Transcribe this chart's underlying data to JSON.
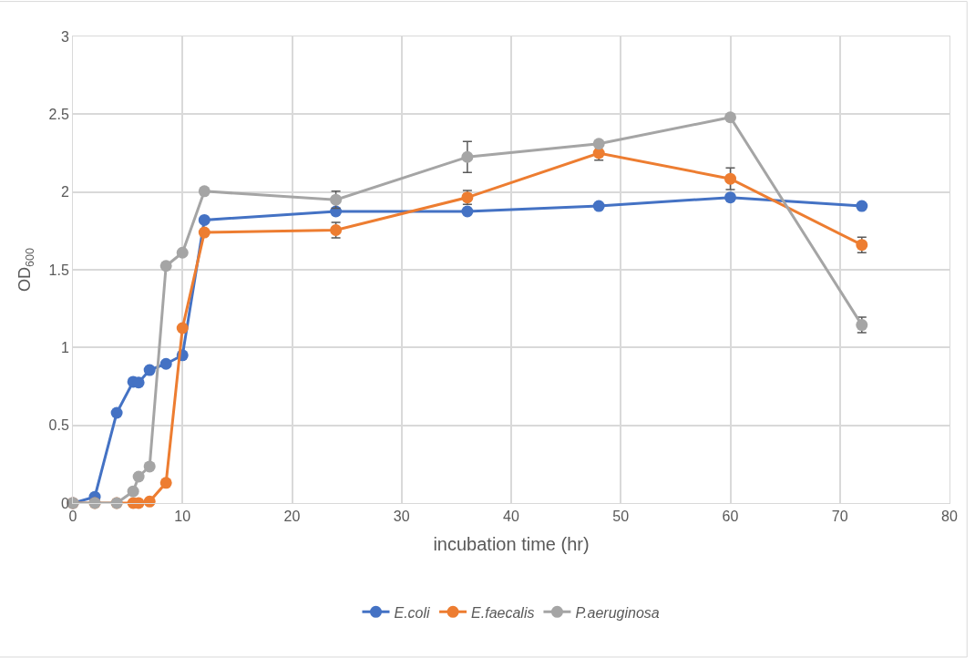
{
  "chart_data": {
    "type": "line",
    "xlabel": "incubation time (hr)",
    "ylabel": "OD$_{600}$",
    "x": [
      0,
      2,
      4,
      5.5,
      6,
      7,
      8.5,
      10,
      12,
      24,
      36,
      48,
      60,
      72
    ],
    "series": [
      {
        "name": "E.coli",
        "color": "#4472c4",
        "values": [
          0,
          0.04,
          0.58,
          0.78,
          0.775,
          0.855,
          0.895,
          0.95,
          1.82,
          1.875,
          1.875,
          1.91,
          1.965,
          1.91
        ],
        "errors": [
          null,
          null,
          null,
          null,
          null,
          null,
          null,
          null,
          null,
          null,
          null,
          null,
          null,
          null
        ]
      },
      {
        "name": "E.faecalis",
        "color": "#ed7d31",
        "values": [
          0,
          0,
          0,
          0,
          0,
          0.01,
          0.13,
          1.125,
          1.74,
          1.755,
          1.965,
          2.25,
          2.085,
          1.66
        ],
        "errors": [
          null,
          null,
          null,
          null,
          null,
          null,
          null,
          null,
          null,
          0.05,
          0.045,
          0.045,
          0.07,
          0.05
        ]
      },
      {
        "name": "P.aeruginosa",
        "color": "#a5a5a5",
        "values": [
          0,
          0,
          0,
          0.075,
          0.17,
          0.235,
          1.525,
          1.61,
          2.005,
          1.95,
          2.225,
          2.31,
          2.48,
          1.145
        ],
        "errors": [
          null,
          null,
          null,
          null,
          null,
          null,
          null,
          null,
          null,
          0.055,
          0.1,
          null,
          null,
          0.05
        ]
      }
    ],
    "xlim": [
      0,
      80
    ],
    "xticks": [
      0,
      10,
      20,
      30,
      40,
      50,
      60,
      70,
      80
    ],
    "ylim": [
      0,
      3
    ],
    "yticks": [
      0,
      0.5,
      1,
      1.5,
      2,
      2.5,
      3
    ],
    "grid": true,
    "legend": "bottom",
    "marker": "circle",
    "line_style": "solid"
  }
}
